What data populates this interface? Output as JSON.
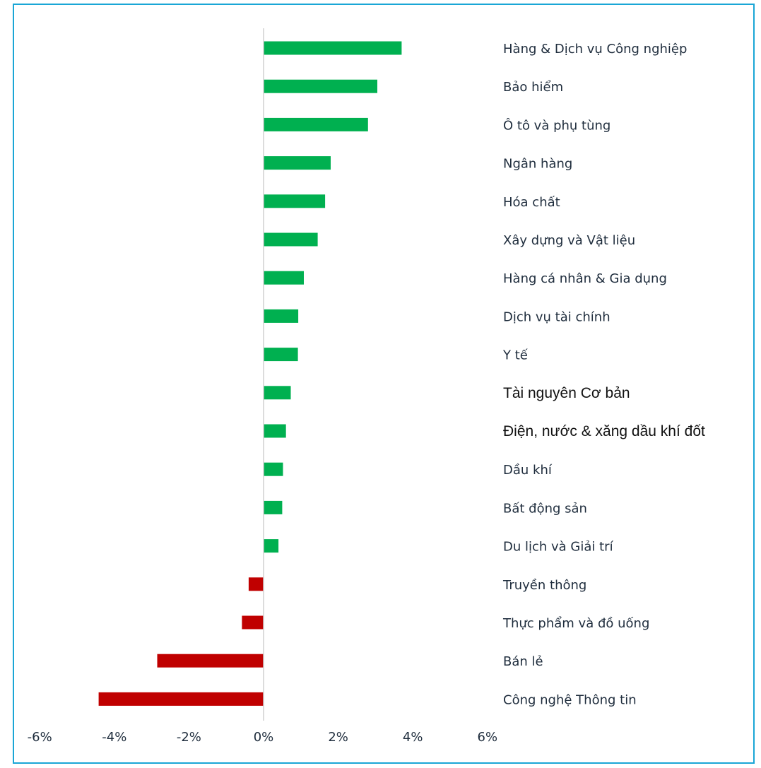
{
  "colors": {
    "positive": "#00b050",
    "negative": "#c00000",
    "axis": "#d0d0d0",
    "frame": "#1aa6d6"
  },
  "chart_data": {
    "type": "bar",
    "orientation": "horizontal",
    "title": "",
    "xlabel": "",
    "ylabel": "",
    "xlim": [
      -6,
      6
    ],
    "x_ticks": [
      "-6%",
      "-4%",
      "-2%",
      "0%",
      "2%",
      "4%",
      "6%"
    ],
    "x_tick_values": [
      -6,
      -4,
      -2,
      0,
      2,
      4,
      6
    ],
    "grid": false,
    "legend": "none",
    "categories": [
      "Hàng & Dịch vụ Công nghiệp",
      "Bảo hiểm",
      "Ô tô và phụ tùng",
      "Ngân hàng",
      "Hóa chất",
      "Xây dựng và Vật liệu",
      "Hàng cá nhân & Gia dụng",
      "Dịch vụ tài chính",
      "Y tế",
      "Tài nguyên Cơ bản",
      "Điện, nước & xăng dầu khí đốt",
      "Dầu khí",
      "Bất động sản",
      "Du lịch và Giải trí",
      "Truyền thông",
      "Thực phẩm và đồ uống",
      "Bán lẻ",
      "Công nghệ Thông tin"
    ],
    "values": [
      3.7,
      3.05,
      2.8,
      1.8,
      1.65,
      1.45,
      1.08,
      0.93,
      0.92,
      0.73,
      0.6,
      0.52,
      0.5,
      0.4,
      -0.4,
      -0.58,
      -2.85,
      -4.42
    ]
  }
}
